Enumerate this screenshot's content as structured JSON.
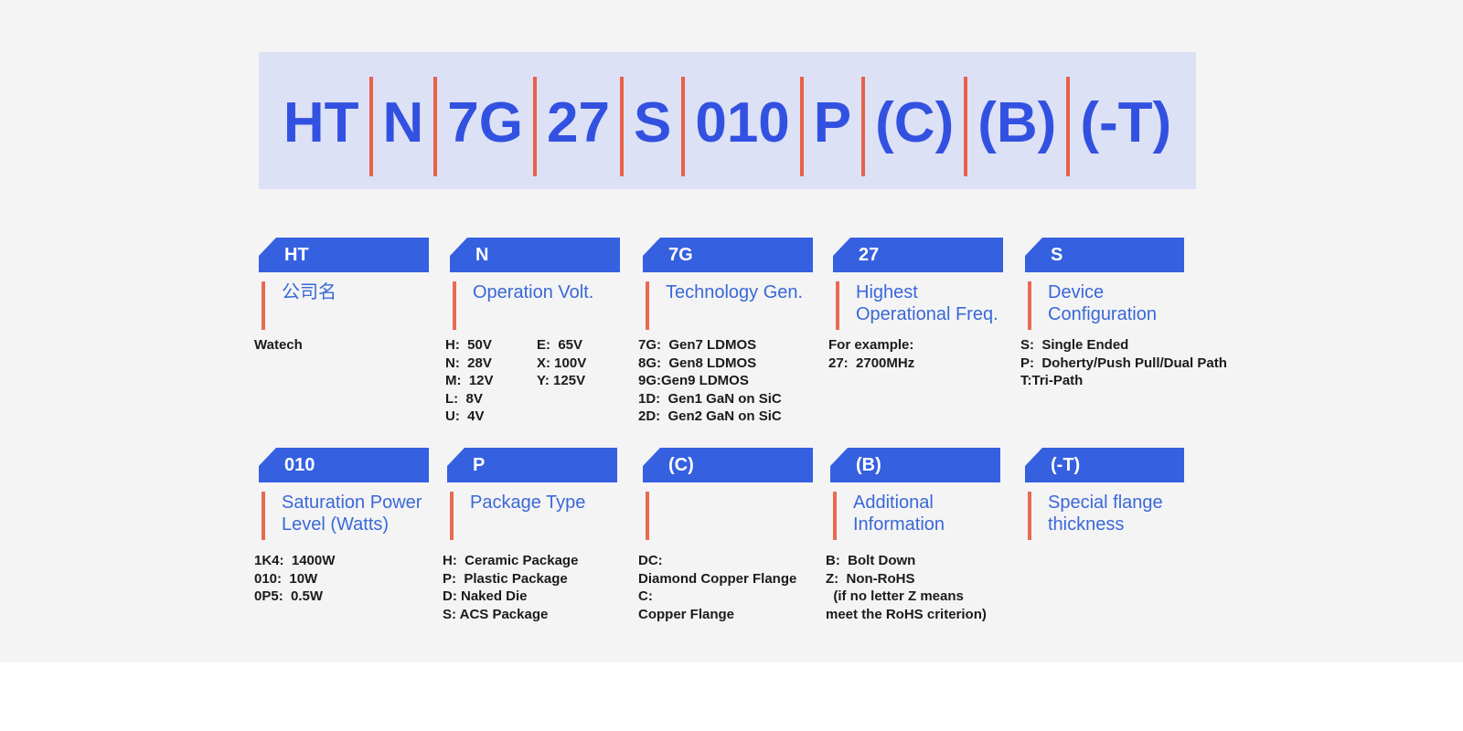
{
  "colors": {
    "page_background": "#f4f4f5",
    "bottom_band": "#ffffff",
    "header_background": "#dce1f6",
    "part_number_blue": "#3351e0",
    "separator_red": "#e86149",
    "banner_blue": "#3560e0",
    "title_blue": "#3a68d8",
    "accent_line_red": "#ea6a50",
    "list_text": "#1b1b1b"
  },
  "header": {
    "segments": [
      "HT",
      "N",
      "7G",
      "27",
      "S",
      "010",
      "P",
      "(C)",
      "(B)",
      "(-T)"
    ]
  },
  "sections": [
    {
      "code": "HT",
      "title_lines": [
        "公司名"
      ],
      "items": [
        "Watech"
      ],
      "items_col2": []
    },
    {
      "code": "N",
      "title_lines": [
        "Operation Volt."
      ],
      "items": [
        "H:  50V",
        "N:  28V",
        "M:  12V",
        "L:  8V",
        "U:  4V"
      ],
      "items_col2": [
        "E:  65V",
        "X: 100V",
        "Y: 125V"
      ]
    },
    {
      "code": "7G",
      "title_lines": [
        "Technology Gen."
      ],
      "items": [
        "7G:  Gen7 LDMOS",
        "8G:  Gen8 LDMOS",
        "9G:Gen9 LDMOS",
        "1D:  Gen1 GaN on SiC",
        "2D:  Gen2 GaN on SiC"
      ],
      "items_col2": []
    },
    {
      "code": "27",
      "title_lines": [
        "Highest",
        "Operational Freq."
      ],
      "items": [
        "For example:",
        "27:  2700MHz"
      ],
      "items_col2": []
    },
    {
      "code": "S",
      "title_lines": [
        "Device",
        "Configuration"
      ],
      "items": [
        "S:  Single Ended",
        "P:  Doherty/Push Pull/Dual Path",
        "T:Tri-Path"
      ],
      "items_col2": []
    },
    {
      "code": "010",
      "title_lines": [
        "Saturation Power",
        "Level (Watts)"
      ],
      "items": [
        "1K4:  1400W",
        "010:  10W",
        "0P5:  0.5W"
      ],
      "items_col2": []
    },
    {
      "code": "P",
      "title_lines": [
        "Package Type"
      ],
      "items": [
        "H:  Ceramic Package",
        "P:  Plastic Package",
        "D: Naked Die",
        "S: ACS Package"
      ],
      "items_col2": []
    },
    {
      "code": "(C)",
      "title_lines": [],
      "items": [
        "DC:",
        "Diamond Copper Flange",
        "C:",
        "Copper Flange"
      ],
      "items_col2": []
    },
    {
      "code": "(B)",
      "title_lines": [
        "Additional",
        "Information"
      ],
      "items": [
        "B:  Bolt Down",
        "Z:  Non-RoHS",
        "  (if no letter Z means",
        "meet the RoHS criterion)"
      ],
      "items_col2": []
    },
    {
      "code": "(-T)",
      "title_lines": [
        "Special flange",
        "thickness"
      ],
      "items": [],
      "items_col2": []
    }
  ]
}
